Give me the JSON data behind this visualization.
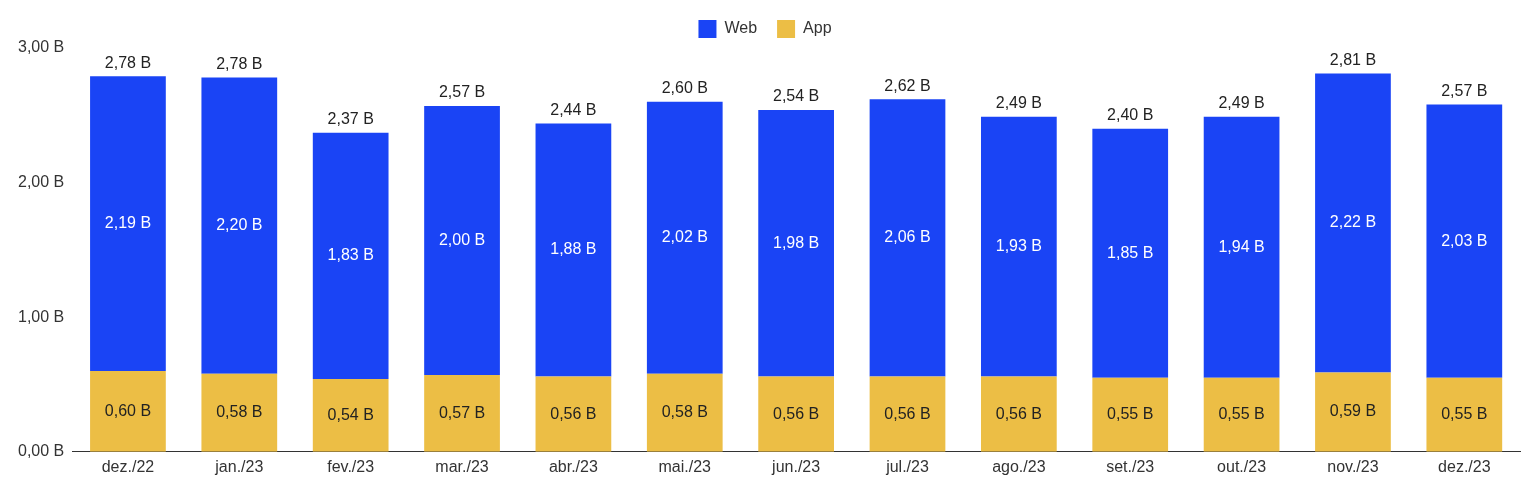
{
  "chart_data": {
    "type": "bar",
    "stacked": true,
    "categories": [
      "dez./22",
      "jan./23",
      "fev./23",
      "mar./23",
      "abr./23",
      "mai./23",
      "jun./23",
      "jul./23",
      "ago./23",
      "set./23",
      "out./23",
      "nov./23",
      "dez./23"
    ],
    "series": [
      {
        "name": "App",
        "color": "#ecbe45",
        "values": [
          0.6,
          0.58,
          0.54,
          0.57,
          0.56,
          0.58,
          0.56,
          0.56,
          0.56,
          0.55,
          0.55,
          0.59,
          0.55
        ],
        "value_labels": [
          "0,60 B",
          "0,58 B",
          "0,54 B",
          "0,57 B",
          "0,56 B",
          "0,58 B",
          "0,56 B",
          "0,56 B",
          "0,56 B",
          "0,55 B",
          "0,55 B",
          "0,59 B",
          "0,55 B"
        ]
      },
      {
        "name": "Web",
        "color": "#1a44f5",
        "values": [
          2.19,
          2.2,
          1.83,
          2.0,
          1.88,
          2.02,
          1.98,
          2.06,
          1.93,
          1.85,
          1.94,
          2.22,
          2.03
        ],
        "value_labels": [
          "2,19 B",
          "2,20 B",
          "1,83 B",
          "2,00 B",
          "1,88 B",
          "2,02 B",
          "1,98 B",
          "2,06 B",
          "1,93 B",
          "1,85 B",
          "1,94 B",
          "2,22 B",
          "2,03 B"
        ]
      }
    ],
    "totals": [
      "2,78 B",
      "2,78 B",
      "2,37 B",
      "2,57 B",
      "2,44 B",
      "2,60 B",
      "2,54 B",
      "2,62 B",
      "2,49 B",
      "2,40 B",
      "2,49 B",
      "2,81 B",
      "2,57 B"
    ],
    "ylim": [
      0,
      3
    ],
    "yticks": [
      {
        "value": 0,
        "label": "0,00 B"
      },
      {
        "value": 1,
        "label": "1,00 B"
      },
      {
        "value": 2,
        "label": "2,00 B"
      },
      {
        "value": 3,
        "label": "3,00 B"
      }
    ],
    "grid": false,
    "legend": "top"
  }
}
